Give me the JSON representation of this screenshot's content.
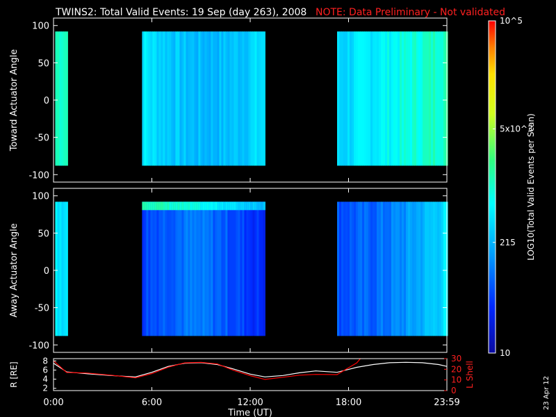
{
  "title_main": "TWINS2: Total Valid Events: 19 Sep (day 263), 2008",
  "title_note": "NOTE: Data Preliminary - Not validated",
  "colors": {
    "background": "#000000",
    "axes": "#ffffff",
    "note": "#ff2020",
    "r_line": "#ffffff",
    "lshell_line": "#ff0000"
  },
  "date_stamp": "23 Apr 12",
  "chart_data": [
    {
      "type": "heatmap",
      "ylabel": "Toward Actuator Angle",
      "ylim": [
        -110,
        110
      ],
      "yticks": [
        100,
        50,
        0,
        -50,
        -100
      ],
      "y_range_data": [
        -88,
        92
      ],
      "xlim_hours": [
        0,
        24
      ],
      "data_blocks_hours": [
        [
          0.1,
          0.8
        ],
        [
          5.4,
          12.9
        ],
        [
          17.3,
          24
        ]
      ],
      "colorbar": {
        "scale": "log",
        "range": [
          10,
          100000
        ],
        "tick_labels": [
          "10",
          "215",
          "5x10^3",
          "10^5"
        ],
        "label": "LOG10(Total Valid Events per Scan)"
      }
    },
    {
      "type": "heatmap",
      "ylabel": "Away Actuator Angle",
      "ylim": [
        -110,
        110
      ],
      "yticks": [
        100,
        50,
        0,
        -50,
        -100
      ],
      "y_range_data": [
        -88,
        92
      ],
      "xlim_hours": [
        0,
        24
      ],
      "data_blocks_hours": [
        [
          0.1,
          0.8
        ],
        [
          5.4,
          12.9
        ],
        [
          17.3,
          24
        ]
      ]
    },
    {
      "type": "line",
      "xlabel": "Time (UT)",
      "xtick_labels": [
        "0:00",
        "6:00",
        "12:00",
        "18:00",
        "23:59"
      ],
      "xtick_hours": [
        0,
        6,
        12,
        18,
        24
      ],
      "left_axis": {
        "label": "R [RE]",
        "range": [
          1.5,
          8.5
        ],
        "ticks": [
          2,
          4,
          6,
          8
        ]
      },
      "right_axis": {
        "label": "L Shell",
        "range": [
          0,
          30
        ],
        "ticks": [
          0,
          10,
          20,
          30
        ]
      },
      "series": [
        {
          "name": "R [RE]",
          "color": "#ffffff",
          "x": [
            0,
            0.8,
            2,
            3.5,
            5,
            6,
            7,
            8,
            9,
            10,
            11,
            12,
            12.9,
            14,
            15,
            16,
            17.3,
            18.5,
            19.5,
            20.5,
            21.5,
            22.5,
            23.5,
            24
          ],
          "y": [
            7.5,
            5.6,
            5.2,
            4.8,
            4.5,
            5.5,
            6.8,
            7.5,
            7.6,
            7.2,
            6.2,
            5.1,
            4.5,
            4.8,
            5.4,
            5.8,
            5.5,
            6.6,
            7.2,
            7.6,
            7.7,
            7.6,
            7.2,
            6.8
          ]
        },
        {
          "name": "L Shell",
          "color": "#ff0000",
          "x": [
            0,
            0.8,
            2,
            3.5,
            5,
            6,
            7,
            8,
            9,
            10,
            11,
            12,
            12.9,
            14,
            15,
            16,
            17.3,
            18.5,
            19
          ],
          "y": [
            28,
            17,
            16.5,
            14.5,
            12,
            16,
            22,
            26,
            26.5,
            25,
            19,
            14,
            10.5,
            12.5,
            14.5,
            15.2,
            15,
            26,
            35
          ]
        }
      ]
    }
  ]
}
